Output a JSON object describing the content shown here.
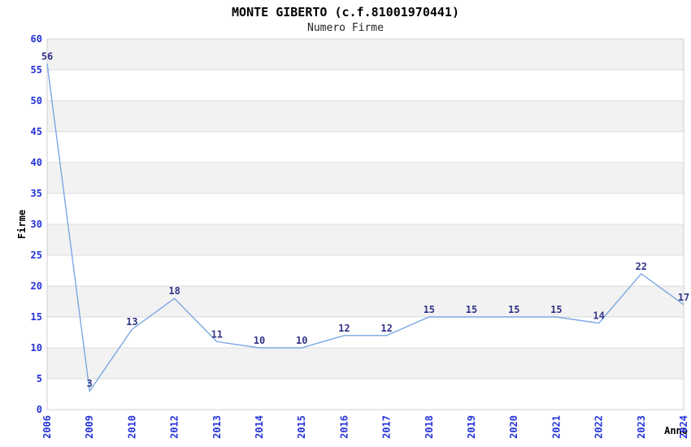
{
  "chart_data": {
    "type": "line",
    "title": "MONTE GIBERTO (c.f.81001970441)",
    "subtitle": "Numero Firme",
    "xlabel": "Anno",
    "ylabel": "Firme",
    "categories": [
      "2006",
      "2009",
      "2010",
      "2012",
      "2013",
      "2014",
      "2015",
      "2016",
      "2017",
      "2018",
      "2019",
      "2020",
      "2021",
      "2022",
      "2023",
      "2024"
    ],
    "series": [
      {
        "name": "Numero Firme",
        "values": [
          56,
          3,
          13,
          18,
          11,
          10,
          10,
          12,
          12,
          15,
          15,
          15,
          15,
          14,
          22,
          17
        ]
      }
    ],
    "ylim": [
      0,
      60
    ],
    "yticks": [
      0,
      5,
      10,
      15,
      20,
      25,
      30,
      35,
      40,
      45,
      50,
      55,
      60
    ],
    "grid": "horizontal-lines-with-alternating-bands",
    "legend_position": "none",
    "data_labels": true,
    "x_tick_rotation": -90
  },
  "style": {
    "line_color": "#7aa8e2",
    "tick_label_color": "#2433d9",
    "data_label_color": "#333388",
    "band_color": "#f2f2f2",
    "grid_color": "#dcdcdc",
    "border_color": "#cfcfcf",
    "title_color": "#000000",
    "subtitle_color": "#222222",
    "axis_title_color": "#000000",
    "background_color": "#ffffff"
  }
}
